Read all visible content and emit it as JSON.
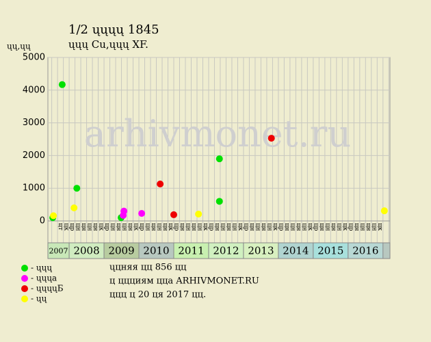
{
  "chart_data": {
    "type": "scatter",
    "title": "1/2 ųųųų 1845",
    "subtitle": "ųųų Cu,ųųų XF.",
    "y_label": "ųų,ųų",
    "watermark": "arhivmonet.ru",
    "xlim": [
      2007.39,
      2017.2
    ],
    "ylim": [
      0,
      5000
    ],
    "yticks": [
      0,
      1000,
      2000,
      3000,
      4000,
      5000
    ],
    "grid": true,
    "years": [
      2007,
      2008,
      2009,
      2010,
      2011,
      2012,
      2013,
      2014,
      2015,
      2016
    ],
    "year_colors": [
      "#c8e8b8",
      "#d0ecc0",
      "#b8cca0",
      "#b8c8c0",
      "#c8f0b0",
      "#d0f0c0",
      "#d8f0c0",
      "#b0d4d0",
      "#a8e0dc",
      "#b8d8d4"
    ],
    "month_labels": [
      [
        "цт",
        "цк"
      ],
      [
        "цр",
        "цн",
        "цн",
        "цн",
        "цн",
        "цк"
      ],
      [
        "цр",
        "цн",
        "цн",
        "цн",
        "цн",
        "цк"
      ],
      [
        "цр",
        "цн",
        "цн",
        "цн",
        "цн",
        "цк"
      ],
      [
        "цр",
        "цн",
        "цн",
        "цн",
        "цн",
        "цк"
      ],
      [
        "цр",
        "цн",
        "цн",
        "цн",
        "цн",
        "цк"
      ],
      [
        "цр",
        "цн",
        "цн",
        "цн",
        "цн",
        "цк"
      ],
      [
        "цр",
        "цн",
        "цн",
        "цн",
        "цн",
        "цк"
      ],
      [
        "цр",
        "цн",
        "цн",
        "цн",
        "цн",
        "цк"
      ],
      [
        "цр",
        "цн",
        "цн",
        "цн",
        "цн",
        "цк"
      ]
    ],
    "series": [
      {
        "name": "- ųųų",
        "color": "#00e000",
        "x": [
          2007.53,
          2007.8,
          2008.22,
          2009.49,
          2012.31,
          2012.31
        ],
        "values": [
          100,
          4170,
          1000,
          100,
          1900,
          600
        ]
      },
      {
        "name": "- ųųųа",
        "color": "#ff00ff",
        "x": [
          2009.55,
          2009.57,
          2010.08
        ],
        "values": [
          170,
          300,
          230
        ]
      },
      {
        "name": "- ųųųųБ",
        "color": "#ee0000",
        "x": [
          2010.61,
          2011.0,
          2013.8
        ],
        "values": [
          1130,
          190,
          2530
        ]
      },
      {
        "name": "- ųų",
        "color": "#ffff00",
        "x": [
          2007.55,
          2008.14,
          2011.71,
          2017.04
        ],
        "values": [
          160,
          400,
          210,
          310
        ]
      }
    ],
    "notes": [
      "ųцняя цц 856 цц",
      "ц ццциям ццa ARHIVMONET.RU",
      "ццц ц 20 ця 2017 цц."
    ]
  }
}
